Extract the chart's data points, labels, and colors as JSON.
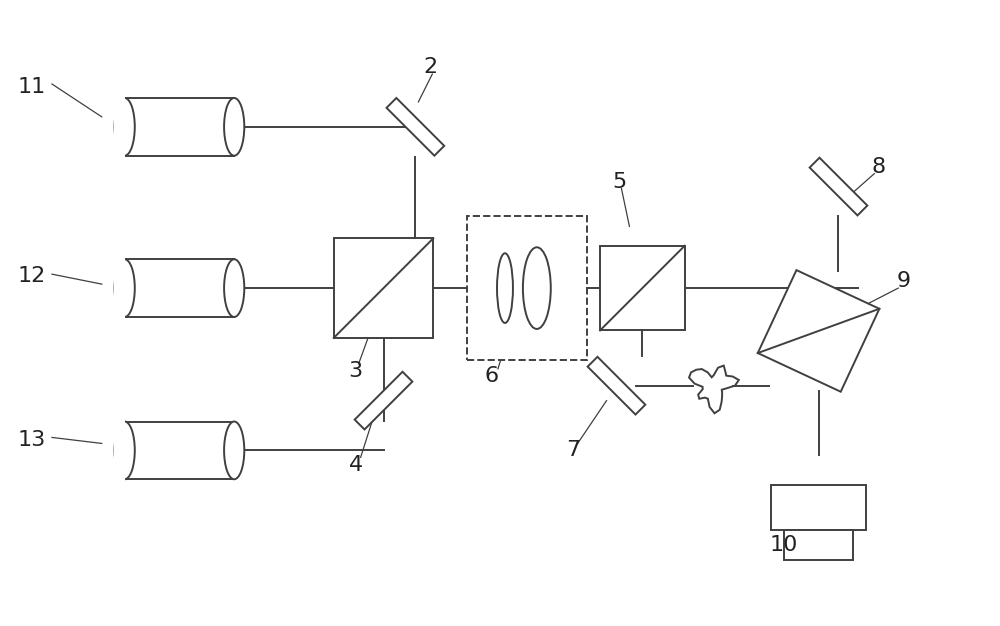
{
  "bg_color": "#ffffff",
  "line_color": "#404040",
  "label_color": "#222222",
  "fig_width": 10.0,
  "fig_height": 6.26,
  "dpi": 100
}
